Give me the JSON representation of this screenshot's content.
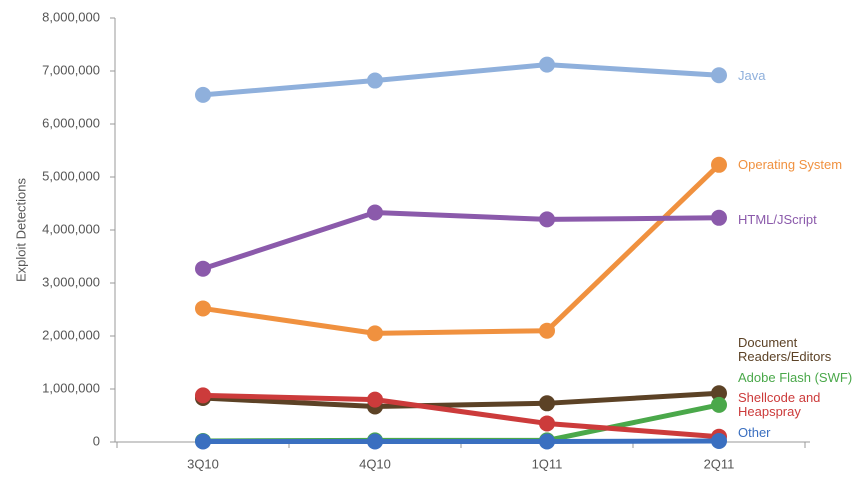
{
  "chart_data": {
    "type": "line",
    "y_label": "Exploit Detections",
    "categories": [
      "3Q10",
      "4Q10",
      "1Q11",
      "2Q11"
    ],
    "ylim": [
      0,
      8000000
    ],
    "yticks": [
      0,
      {
        "value": 1000000,
        "label": "1,000,000"
      },
      {
        "value": 2000000,
        "label": "2,000,000"
      },
      {
        "value": 3000000,
        "label": "3,000,000"
      },
      {
        "value": 4000000,
        "label": "4,000,000"
      },
      {
        "value": 5000000,
        "label": "5,000,000"
      },
      {
        "value": 6000000,
        "label": "6,000,000"
      },
      {
        "value": 7000000,
        "label": "7,000,000"
      },
      {
        "value": 8000000,
        "label": "8,000,000"
      }
    ],
    "series": [
      {
        "name": "Java",
        "color": "#8fb0dc",
        "values": [
          6550000,
          6820000,
          7120000,
          6920000
        ]
      },
      {
        "name": "Operating System",
        "color": "#f0913f",
        "values": [
          2520000,
          2050000,
          2100000,
          5230000
        ]
      },
      {
        "name": "HTML/JScript",
        "color": "#8b5aab",
        "values": [
          3270000,
          4330000,
          4200000,
          4230000
        ]
      },
      {
        "name": "Document Readers/Editors",
        "color": "#5c4226",
        "values": [
          830000,
          670000,
          730000,
          920000
        ]
      },
      {
        "name": "Adobe Flash (SWF)",
        "color": "#4aa84a",
        "values": [
          20000,
          30000,
          30000,
          700000
        ]
      },
      {
        "name": "Shellcode and Heapspray",
        "color": "#cc3b3b",
        "values": [
          880000,
          800000,
          350000,
          100000
        ]
      },
      {
        "name": "Other",
        "color": "#3a6fc0",
        "values": [
          10000,
          10000,
          10000,
          20000
        ]
      }
    ]
  }
}
